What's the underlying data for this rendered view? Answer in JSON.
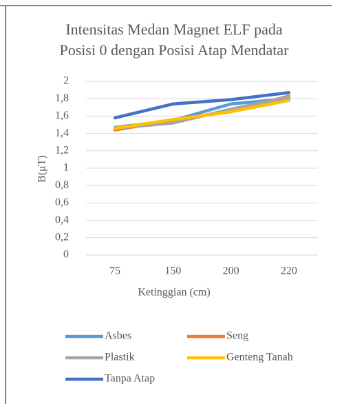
{
  "chart_data": {
    "type": "line",
    "title": "Intensitas Medan Magnet ELF pada Posisi 0 dengan Posisi Atap Mendatar",
    "x_label": "Ketinggian (cm)",
    "y_label": "B(μT)",
    "categories": [
      "75",
      "150",
      "200",
      "220"
    ],
    "series": [
      {
        "name": "Asbes",
        "color": "#5b9bd5",
        "values": [
          1.47,
          1.55,
          1.74,
          1.8
        ]
      },
      {
        "name": "Seng",
        "color": "#ed7d31",
        "values": [
          1.44,
          1.55,
          1.66,
          1.83
        ]
      },
      {
        "name": "Plastik",
        "color": "#a5a5a5",
        "values": [
          1.46,
          1.52,
          1.68,
          1.82
        ]
      },
      {
        "name": "Genteng Tanah",
        "color": "#ffc000",
        "values": [
          1.46,
          1.56,
          1.65,
          1.78
        ]
      },
      {
        "name": "Tanpa Atap",
        "color": "#4472c4",
        "values": [
          1.58,
          1.74,
          1.79,
          1.87
        ]
      }
    ],
    "ylim": [
      0,
      2
    ],
    "yticks": [
      0,
      {
        "value": 0.2,
        "label": "0,2"
      },
      {
        "value": 0.4,
        "label": "0,4"
      },
      {
        "value": 0.6,
        "label": "0,6"
      },
      {
        "value": 0.8,
        "label": "0,8"
      },
      1,
      {
        "value": 1.2,
        "label": "1,2"
      },
      {
        "value": 1.4,
        "label": "1,4"
      },
      {
        "value": 1.6,
        "label": "1,6"
      },
      {
        "value": 1.8,
        "label": "1,8"
      },
      2
    ],
    "grid": true,
    "legend": "bottom"
  }
}
